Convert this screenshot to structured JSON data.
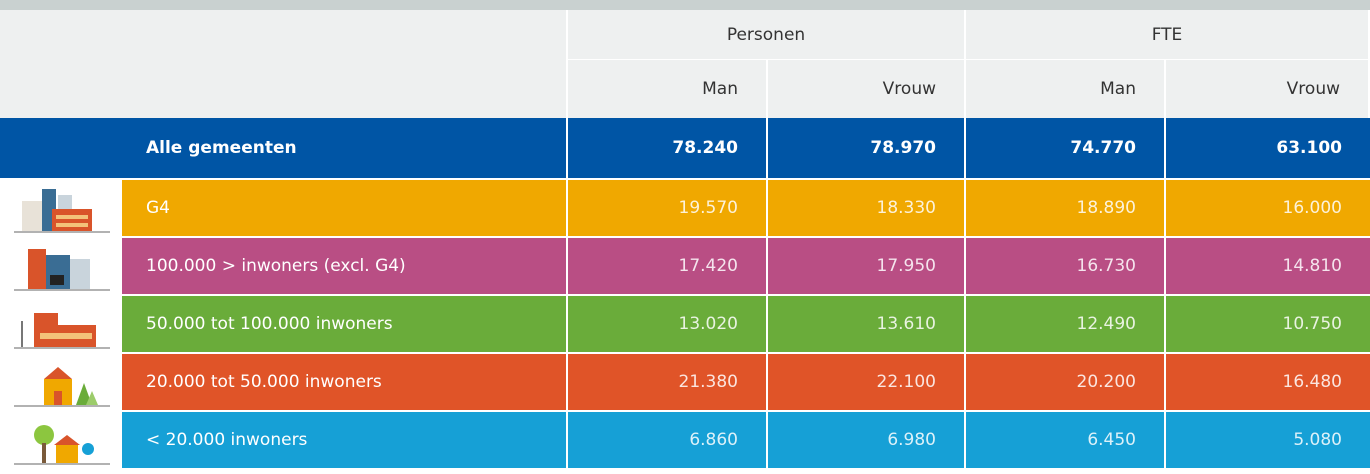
{
  "table": {
    "group_headers": [
      "Personen",
      "FTE"
    ],
    "sub_headers": [
      "Man",
      "Vrouw",
      "Man",
      "Vrouw"
    ],
    "rows": [
      {
        "label": "Alle gemeenten",
        "values": [
          "78.240",
          "78.970",
          "74.770",
          "63.100"
        ]
      },
      {
        "label": "G4",
        "values": [
          "19.570",
          "18.330",
          "18.890",
          "16.000"
        ]
      },
      {
        "label": "100.000 > inwoners (excl. G4)",
        "values": [
          "17.420",
          "17.950",
          "16.730",
          "14.810"
        ]
      },
      {
        "label": "50.000 tot 100.000 inwoners",
        "values": [
          "13.020",
          "13.610",
          "12.490",
          "10.750"
        ]
      },
      {
        "label": "20.000 tot 50.000 inwoners",
        "values": [
          "21.380",
          "22.100",
          "20.200",
          "16.480"
        ]
      },
      {
        "label": "< 20.000 inwoners",
        "values": [
          "6.860",
          "6.980",
          "6.450",
          "5.080"
        ]
      }
    ]
  }
}
